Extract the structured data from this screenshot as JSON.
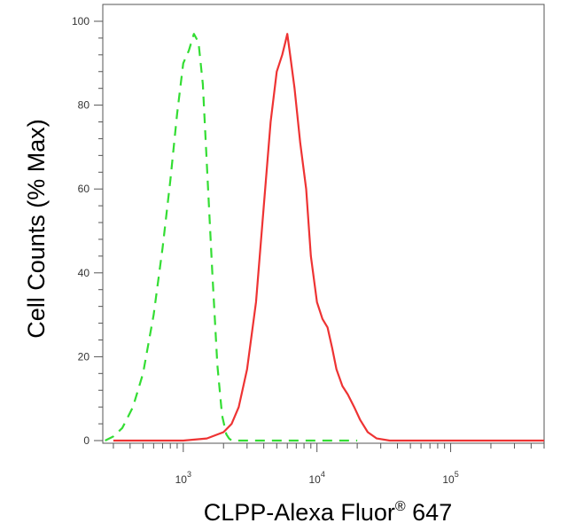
{
  "chart_data": {
    "type": "line",
    "title": "",
    "xlabel": "CLPP-Alexa Fluor",
    "xlabel_superscript": "®",
    "xlabel_suffix": " 647",
    "ylabel": "Cell Counts (% Max)",
    "x_scale": "log",
    "xlim": [
      250,
      500000
    ],
    "ylim": [
      0,
      100
    ],
    "y_ticks": [
      0,
      20,
      40,
      60,
      80,
      100
    ],
    "x_tick_labels": [
      {
        "base": "10",
        "exp": "3",
        "value": 1000
      },
      {
        "base": "10",
        "exp": "4",
        "value": 10000
      },
      {
        "base": "10",
        "exp": "5",
        "value": 100000
      }
    ],
    "grid": false,
    "legend": "none",
    "series": [
      {
        "color": "#33dd33",
        "dash": "dashed",
        "x": [
          260,
          300,
          350,
          420,
          500,
          600,
          700,
          800,
          900,
          1000,
          1100,
          1200,
          1300,
          1400,
          1500,
          1650,
          1800,
          1950,
          2100,
          2200,
          2300,
          2500,
          3000,
          5000,
          10000,
          20000
        ],
        "y": [
          0,
          1,
          3,
          8,
          16,
          30,
          46,
          62,
          78,
          90,
          93,
          97,
          95,
          85,
          66,
          40,
          18,
          6,
          1.5,
          0.5,
          0,
          0,
          0,
          0,
          0,
          0
        ]
      },
      {
        "color": "#ee3333",
        "dash": "solid",
        "x": [
          300,
          1000,
          1500,
          2000,
          2300,
          2600,
          3000,
          3500,
          4000,
          4500,
          5000,
          5500,
          5800,
          6000,
          6300,
          6800,
          7500,
          8300,
          9000,
          10000,
          11000,
          12000,
          13000,
          14000,
          15500,
          17000,
          19000,
          21000,
          24000,
          28000,
          35000,
          100000,
          500000
        ],
        "y": [
          0,
          0,
          0.5,
          2,
          4,
          8,
          17,
          33,
          56,
          76,
          88,
          92,
          95,
          97,
          92,
          84,
          71,
          60,
          44,
          33,
          29,
          27,
          22,
          17,
          13,
          11,
          8,
          5,
          2,
          0.5,
          0,
          0,
          0
        ]
      }
    ]
  }
}
